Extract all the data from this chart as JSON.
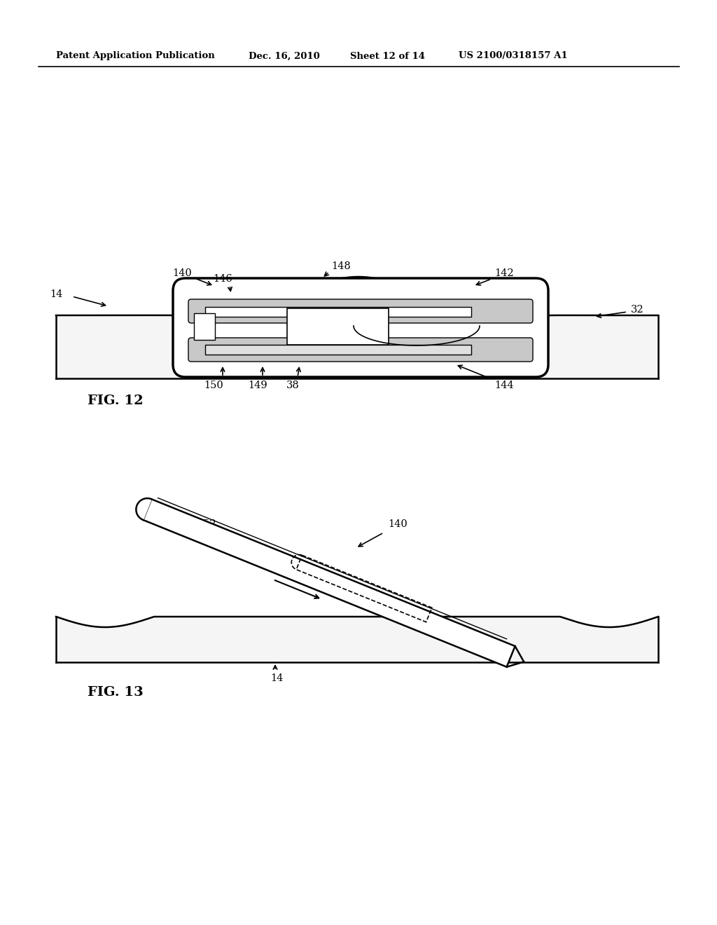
{
  "bg": "#ffffff",
  "black": "#000000",
  "gray_fill": "#d0d0d0",
  "light_gray": "#e8e8e8",
  "header": {
    "left": "Patent Application Publication",
    "mid": "Dec. 16, 2010",
    "sheet": "Sheet 12 of 14",
    "patent": "US 2100/0318157 A1"
  },
  "fig12_caption": "FIG. 12",
  "fig13_caption": "FIG. 13"
}
